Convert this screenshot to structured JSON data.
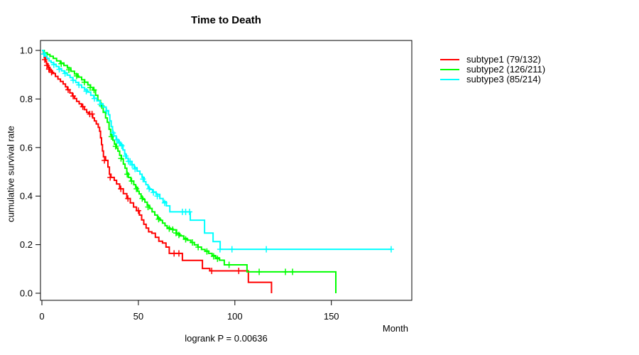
{
  "title": "Time to Death",
  "axes": {
    "x": {
      "label": "Month",
      "ticks": [
        "0",
        "50",
        "100",
        "150"
      ]
    },
    "y": {
      "label": "cumulative survival rate",
      "ticks": [
        "0.0",
        "0.2",
        "0.4",
        "0.6",
        "0.8",
        "1.0"
      ]
    }
  },
  "annotation": {
    "logrank": "logrank P = 0.00636"
  },
  "legend": {
    "items": [
      {
        "label": "subtype1 (79/132)",
        "color": "#ff0000"
      },
      {
        "label": "subtype2 (126/211)",
        "color": "#00ff00"
      },
      {
        "label": "subtype3 (85/214)",
        "color": "#00ffff"
      }
    ]
  },
  "chart_data": {
    "type": "line",
    "variant": "kaplan-meier-step",
    "title": "Time to Death",
    "xlabel": "Month",
    "ylabel": "cumulative survival rate",
    "xlim": [
      0,
      192
    ],
    "ylim": [
      0,
      1
    ],
    "x_ticks": [
      0,
      50,
      100,
      150
    ],
    "y_ticks": [
      0.0,
      0.2,
      0.4,
      0.6,
      0.8,
      1.0
    ],
    "grid": false,
    "legend_position": "right-outside",
    "annotation": "logrank P = 0.00636",
    "series": [
      {
        "name": "subtype1",
        "events": "79/132",
        "color": "#ff0000",
        "steps": [
          [
            0,
            1
          ],
          [
            0.7,
            0.985
          ],
          [
            1.2,
            0.97
          ],
          [
            1.8,
            0.955
          ],
          [
            2.4,
            0.945
          ],
          [
            3.2,
            0.93
          ],
          [
            4.2,
            0.916
          ],
          [
            5.5,
            0.905
          ],
          [
            7,
            0.893
          ],
          [
            8.3,
            0.882
          ],
          [
            9.6,
            0.872
          ],
          [
            11,
            0.862
          ],
          [
            12.2,
            0.85
          ],
          [
            13.2,
            0.838
          ],
          [
            14.5,
            0.825
          ],
          [
            15.8,
            0.812
          ],
          [
            16.9,
            0.802
          ],
          [
            18,
            0.79
          ],
          [
            19.3,
            0.78
          ],
          [
            20.6,
            0.768
          ],
          [
            22,
            0.756
          ],
          [
            23.2,
            0.745
          ],
          [
            24.3,
            0.738
          ],
          [
            26.3,
            0.722
          ],
          [
            27.2,
            0.71
          ],
          [
            28.2,
            0.697
          ],
          [
            29.2,
            0.683
          ],
          [
            29.9,
            0.667
          ],
          [
            30.4,
            0.64
          ],
          [
            30.9,
            0.612
          ],
          [
            31.4,
            0.586
          ],
          [
            31.9,
            0.562
          ],
          [
            33,
            0.547
          ],
          [
            34.2,
            0.52
          ],
          [
            35,
            0.49
          ],
          [
            35.8,
            0.477
          ],
          [
            37.5,
            0.465
          ],
          [
            38.7,
            0.45
          ],
          [
            40.3,
            0.43
          ],
          [
            42.2,
            0.41
          ],
          [
            44,
            0.39
          ],
          [
            45.8,
            0.372
          ],
          [
            47.5,
            0.355
          ],
          [
            49,
            0.34
          ],
          [
            50.5,
            0.322
          ],
          [
            51.7,
            0.302
          ],
          [
            52.8,
            0.284
          ],
          [
            54,
            0.268
          ],
          [
            55.3,
            0.253
          ],
          [
            57,
            0.247
          ],
          [
            58.8,
            0.23
          ],
          [
            60.6,
            0.214
          ],
          [
            62.5,
            0.207
          ],
          [
            64.3,
            0.19
          ],
          [
            66,
            0.164
          ],
          [
            72.8,
            0.135
          ],
          [
            83.2,
            0.102
          ],
          [
            87,
            0.092
          ],
          [
            107,
            0.045
          ],
          [
            119,
            0
          ]
        ],
        "censors": [
          [
            1.5,
            0.962
          ],
          [
            2.6,
            0.938
          ],
          [
            3.6,
            0.923
          ],
          [
            5,
            0.91
          ],
          [
            13.6,
            0.838
          ],
          [
            16.2,
            0.812
          ],
          [
            21.2,
            0.768
          ],
          [
            24.8,
            0.738
          ],
          [
            26,
            0.738
          ],
          [
            32.4,
            0.547
          ],
          [
            35.4,
            0.477
          ],
          [
            40.9,
            0.43
          ],
          [
            44.6,
            0.39
          ],
          [
            50,
            0.34
          ],
          [
            68.5,
            0.164
          ],
          [
            71,
            0.164
          ],
          [
            88,
            0.092
          ],
          [
            102,
            0.092
          ]
        ]
      },
      {
        "name": "subtype2",
        "events": "126/211",
        "color": "#00ff00",
        "steps": [
          [
            0,
            1
          ],
          [
            1.2,
            0.99
          ],
          [
            2.8,
            0.983
          ],
          [
            4.2,
            0.976
          ],
          [
            5.9,
            0.967
          ],
          [
            7.6,
            0.957
          ],
          [
            9.5,
            0.948
          ],
          [
            11.4,
            0.938
          ],
          [
            13.2,
            0.928
          ],
          [
            15,
            0.914
          ],
          [
            16.9,
            0.903
          ],
          [
            18.7,
            0.89
          ],
          [
            20.6,
            0.879
          ],
          [
            22.2,
            0.869
          ],
          [
            23.8,
            0.858
          ],
          [
            25.2,
            0.847
          ],
          [
            26.5,
            0.837
          ],
          [
            27.8,
            0.815
          ],
          [
            29,
            0.794
          ],
          [
            30.4,
            0.772
          ],
          [
            31.8,
            0.745
          ],
          [
            33,
            0.722
          ],
          [
            33.9,
            0.704
          ],
          [
            34.8,
            0.675
          ],
          [
            35.6,
            0.652
          ],
          [
            36.8,
            0.63
          ],
          [
            37.6,
            0.614
          ],
          [
            38.6,
            0.598
          ],
          [
            39.4,
            0.585
          ],
          [
            40.3,
            0.568
          ],
          [
            41.2,
            0.553
          ],
          [
            42.2,
            0.532
          ],
          [
            43.1,
            0.515
          ],
          [
            44,
            0.495
          ],
          [
            44.8,
            0.477
          ],
          [
            46.1,
            0.462
          ],
          [
            47.6,
            0.447
          ],
          [
            48.6,
            0.436
          ],
          [
            49.6,
            0.42
          ],
          [
            50.4,
            0.409
          ],
          [
            51.4,
            0.396
          ],
          [
            52.3,
            0.386
          ],
          [
            53.4,
            0.375
          ],
          [
            54.6,
            0.362
          ],
          [
            55.8,
            0.349
          ],
          [
            57.1,
            0.335
          ],
          [
            58.5,
            0.322
          ],
          [
            59.9,
            0.31
          ],
          [
            61.2,
            0.3
          ],
          [
            62.5,
            0.289
          ],
          [
            63.8,
            0.278
          ],
          [
            64.9,
            0.27
          ],
          [
            66.4,
            0.265
          ],
          [
            68,
            0.261
          ],
          [
            69.8,
            0.246
          ],
          [
            71.5,
            0.236
          ],
          [
            73.5,
            0.226
          ],
          [
            75.3,
            0.218
          ],
          [
            77.2,
            0.209
          ],
          [
            79,
            0.199
          ],
          [
            80.8,
            0.19
          ],
          [
            82.7,
            0.18
          ],
          [
            84.5,
            0.174
          ],
          [
            86.4,
            0.164
          ],
          [
            88.2,
            0.155
          ],
          [
            90,
            0.146
          ],
          [
            92,
            0.136
          ],
          [
            94.5,
            0.117
          ],
          [
            106.3,
            0.088
          ],
          [
            152.3,
            0
          ]
        ],
        "censors": [
          [
            10,
            0.945
          ],
          [
            14,
            0.92
          ],
          [
            18,
            0.895
          ],
          [
            22,
            0.869
          ],
          [
            25,
            0.847
          ],
          [
            27,
            0.837
          ],
          [
            31,
            0.772
          ],
          [
            36,
            0.645
          ],
          [
            38.2,
            0.605
          ],
          [
            41,
            0.555
          ],
          [
            44.2,
            0.49
          ],
          [
            46.5,
            0.462
          ],
          [
            49,
            0.43
          ],
          [
            52,
            0.39
          ],
          [
            55,
            0.355
          ],
          [
            60.5,
            0.305
          ],
          [
            66,
            0.266
          ],
          [
            67.8,
            0.262
          ],
          [
            69.5,
            0.248
          ],
          [
            71,
            0.24
          ],
          [
            74.5,
            0.222
          ],
          [
            78,
            0.209
          ],
          [
            81,
            0.19
          ],
          [
            85.5,
            0.172
          ],
          [
            89,
            0.152
          ],
          [
            91,
            0.142
          ],
          [
            97,
            0.117
          ],
          [
            112.6,
            0.088
          ],
          [
            126.2,
            0.088
          ],
          [
            129.9,
            0.088
          ]
        ]
      },
      {
        "name": "subtype3",
        "events": "85/214",
        "color": "#00ffff",
        "steps": [
          [
            0,
            1
          ],
          [
            0.8,
            0.99
          ],
          [
            1.6,
            0.977
          ],
          [
            2.6,
            0.967
          ],
          [
            3.7,
            0.957
          ],
          [
            4.8,
            0.95
          ],
          [
            6,
            0.943
          ],
          [
            7.4,
            0.934
          ],
          [
            8.8,
            0.925
          ],
          [
            10.2,
            0.916
          ],
          [
            11.6,
            0.908
          ],
          [
            13.1,
            0.898
          ],
          [
            14.6,
            0.888
          ],
          [
            16,
            0.877
          ],
          [
            17.5,
            0.868
          ],
          [
            19,
            0.858
          ],
          [
            20.6,
            0.847
          ],
          [
            22.1,
            0.838
          ],
          [
            23.7,
            0.828
          ],
          [
            25.3,
            0.815
          ],
          [
            26.9,
            0.803
          ],
          [
            28.5,
            0.792
          ],
          [
            30.1,
            0.78
          ],
          [
            31.7,
            0.767
          ],
          [
            33.3,
            0.752
          ],
          [
            34.5,
            0.735
          ],
          [
            35.2,
            0.71
          ],
          [
            35.9,
            0.686
          ],
          [
            36.6,
            0.663
          ],
          [
            37.3,
            0.648
          ],
          [
            38.5,
            0.634
          ],
          [
            39.5,
            0.622
          ],
          [
            40.8,
            0.611
          ],
          [
            42,
            0.59
          ],
          [
            42.9,
            0.572
          ],
          [
            43.8,
            0.556
          ],
          [
            44.7,
            0.543
          ],
          [
            46.5,
            0.53
          ],
          [
            47.8,
            0.517
          ],
          [
            49.3,
            0.503
          ],
          [
            50.8,
            0.49
          ],
          [
            51.9,
            0.477
          ],
          [
            53,
            0.46
          ],
          [
            53.9,
            0.447
          ],
          [
            55,
            0.435
          ],
          [
            55.9,
            0.427
          ],
          [
            57.4,
            0.417
          ],
          [
            59.2,
            0.407
          ],
          [
            61.1,
            0.39
          ],
          [
            62.8,
            0.377
          ],
          [
            64.5,
            0.36
          ],
          [
            66.3,
            0.335
          ],
          [
            76.9,
            0.301
          ],
          [
            84.3,
            0.248
          ],
          [
            88.7,
            0.213
          ],
          [
            92.4,
            0.181
          ],
          [
            181,
            0.181
          ]
        ],
        "censors": [
          [
            1,
            0.985
          ],
          [
            6.2,
            0.941
          ],
          [
            9,
            0.922
          ],
          [
            12,
            0.905
          ],
          [
            16.2,
            0.877
          ],
          [
            19.2,
            0.858
          ],
          [
            23,
            0.832
          ],
          [
            27.2,
            0.802
          ],
          [
            30.3,
            0.778
          ],
          [
            33.5,
            0.75
          ],
          [
            36.9,
            0.66
          ],
          [
            38.8,
            0.632
          ],
          [
            40.2,
            0.618
          ],
          [
            41.4,
            0.607
          ],
          [
            43.4,
            0.565
          ],
          [
            44.9,
            0.543
          ],
          [
            45.7,
            0.543
          ],
          [
            46.8,
            0.528
          ],
          [
            48.3,
            0.512
          ],
          [
            52.4,
            0.47
          ],
          [
            55.6,
            0.43
          ],
          [
            57.8,
            0.415
          ],
          [
            59.8,
            0.4
          ],
          [
            63.6,
            0.372
          ],
          [
            72.8,
            0.335
          ],
          [
            74.5,
            0.335
          ],
          [
            76.5,
            0.335
          ],
          [
            92.3,
            0.181
          ],
          [
            98.5,
            0.181
          ],
          [
            116.3,
            0.181
          ],
          [
            181,
            0.181
          ]
        ]
      }
    ]
  }
}
